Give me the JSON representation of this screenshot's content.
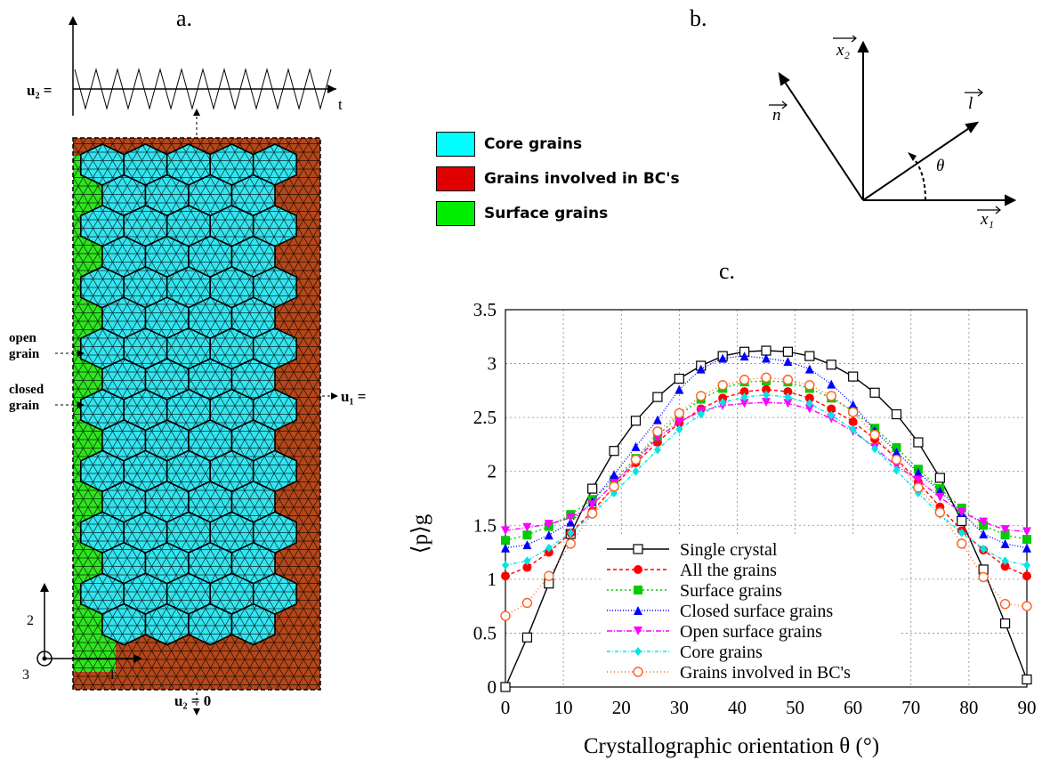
{
  "panels": {
    "a": "a.",
    "b": "b.",
    "c": "c."
  },
  "panel_a": {
    "u2_top_label": "u₂ =",
    "t_label": "t",
    "u1_label": "u₁ =",
    "u2_bottom_label": "u₂ = 0",
    "open_grain_label": [
      "open",
      "grain"
    ],
    "closed_grain_label": [
      "closed",
      "grain"
    ],
    "axis_labels": {
      "two": "2",
      "one": "1",
      "three": "3"
    },
    "colors": {
      "core": "#33e5f0",
      "bc": "#b5471a",
      "surface": "#2ee51f"
    },
    "legend": [
      {
        "label": "Core grains",
        "color": "#00ffff"
      },
      {
        "label": "Grains involved in BC's",
        "color": "#e00000"
      },
      {
        "label": "Surface grains",
        "color": "#00ee00"
      }
    ]
  },
  "panel_b": {
    "vectors": {
      "x1": "x₁",
      "x2": "x₂",
      "n": "n",
      "l": "l",
      "theta": "θ"
    }
  },
  "chart_data": {
    "type": "line",
    "xlabel": "Crystallographic orientation θ (°)",
    "ylabel": "⟨p⟩g",
    "xlim": [
      0,
      90
    ],
    "ylim": [
      0,
      3.5
    ],
    "xticks": [
      0,
      10,
      20,
      30,
      40,
      50,
      60,
      70,
      80,
      90
    ],
    "yticks": [
      0,
      0.5,
      1,
      1.5,
      2,
      2.5,
      3,
      3.5
    ],
    "grid": true,
    "legend_position": "bottom-center",
    "x": [
      0,
      3.75,
      7.5,
      11.25,
      15,
      18.75,
      22.5,
      26.25,
      30,
      33.75,
      37.5,
      41.25,
      45,
      48.75,
      52.5,
      56.25,
      60,
      63.75,
      67.5,
      71.25,
      75,
      78.75,
      82.5,
      86.25,
      90
    ],
    "series": [
      {
        "name": "Single crystal",
        "color": "#000000",
        "marker": "open-square",
        "dash": "solid",
        "values": [
          0,
          0.46,
          0.96,
          1.42,
          1.84,
          2.19,
          2.47,
          2.69,
          2.86,
          2.98,
          3.07,
          3.11,
          3.12,
          3.11,
          3.07,
          2.99,
          2.88,
          2.73,
          2.53,
          2.27,
          1.94,
          1.54,
          1.09,
          0.59,
          0.07
        ]
      },
      {
        "name": "All the grains",
        "color": "#ff0000",
        "marker": "filled-circle",
        "dash": "4,3",
        "values": [
          1.03,
          1.11,
          1.25,
          1.43,
          1.63,
          1.86,
          2.08,
          2.27,
          2.45,
          2.58,
          2.68,
          2.74,
          2.76,
          2.74,
          2.68,
          2.58,
          2.46,
          2.3,
          2.12,
          1.9,
          1.67,
          1.45,
          1.27,
          1.12,
          1.03
        ]
      },
      {
        "name": "Surface grains",
        "color": "#00cc00",
        "marker": "filled-square",
        "dash": "2,3",
        "values": [
          1.36,
          1.41,
          1.49,
          1.6,
          1.74,
          1.92,
          2.12,
          2.33,
          2.52,
          2.67,
          2.77,
          2.83,
          2.84,
          2.83,
          2.77,
          2.68,
          2.56,
          2.4,
          2.22,
          2.02,
          1.84,
          1.66,
          1.5,
          1.41,
          1.37
        ]
      },
      {
        "name": "Closed surface grains",
        "color": "#0000ff",
        "marker": "filled-triangle",
        "dash": "1,2",
        "values": [
          1.29,
          1.32,
          1.41,
          1.53,
          1.72,
          1.97,
          2.23,
          2.48,
          2.76,
          2.95,
          3.05,
          3.07,
          3.05,
          3.02,
          2.95,
          2.81,
          2.62,
          2.38,
          2.18,
          1.99,
          1.82,
          1.62,
          1.42,
          1.33,
          1.29
        ]
      },
      {
        "name": "Open surface grains",
        "color": "#ff00ff",
        "marker": "filled-invtriangle",
        "dash": "6,2,1,2",
        "values": [
          1.45,
          1.48,
          1.51,
          1.57,
          1.69,
          1.89,
          2.1,
          2.31,
          2.46,
          2.56,
          2.61,
          2.63,
          2.64,
          2.63,
          2.58,
          2.49,
          2.37,
          2.22,
          2.05,
          1.92,
          1.76,
          1.62,
          1.53,
          1.46,
          1.44
        ]
      },
      {
        "name": "Core grains",
        "color": "#00e5e5",
        "marker": "filled-diamond",
        "dash": "4,2,1,2",
        "values": [
          1.13,
          1.17,
          1.29,
          1.43,
          1.6,
          1.8,
          2.0,
          2.2,
          2.39,
          2.53,
          2.64,
          2.69,
          2.71,
          2.69,
          2.63,
          2.52,
          2.39,
          2.21,
          2.01,
          1.8,
          1.6,
          1.43,
          1.28,
          1.17,
          1.13
        ]
      },
      {
        "name": "Grains involved in BC's",
        "color": "#ff6020",
        "marker": "open-circle",
        "dash": "1,3",
        "values": [
          0.66,
          0.78,
          1.03,
          1.33,
          1.61,
          1.86,
          2.11,
          2.37,
          2.54,
          2.7,
          2.8,
          2.85,
          2.87,
          2.85,
          2.8,
          2.7,
          2.55,
          2.34,
          2.11,
          1.85,
          1.62,
          1.33,
          1.02,
          0.77,
          0.75
        ]
      }
    ]
  }
}
